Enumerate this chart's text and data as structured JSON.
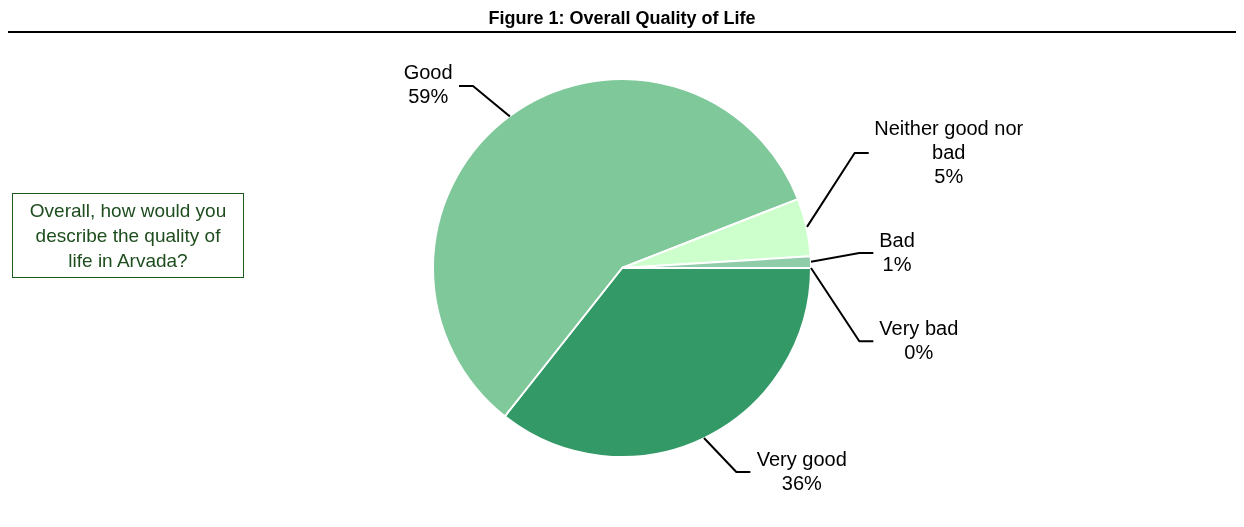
{
  "chart_data": {
    "type": "pie",
    "title": "Figure 1: Overall Quality of Life",
    "categories": [
      "Very good",
      "Good",
      "Neither good nor bad",
      "Bad",
      "Very bad"
    ],
    "values": [
      36,
      59,
      5,
      1,
      0
    ],
    "value_labels": [
      "36%",
      "59%",
      "5%",
      "1%",
      "0%"
    ],
    "colors": [
      "#339966",
      "#7fc89a",
      "#ccffcc",
      "#8fcca8",
      "#5fae84"
    ],
    "legend": false,
    "annotations": [
      "Overall, how would you describe the quality of life in Arvada?"
    ]
  }
}
